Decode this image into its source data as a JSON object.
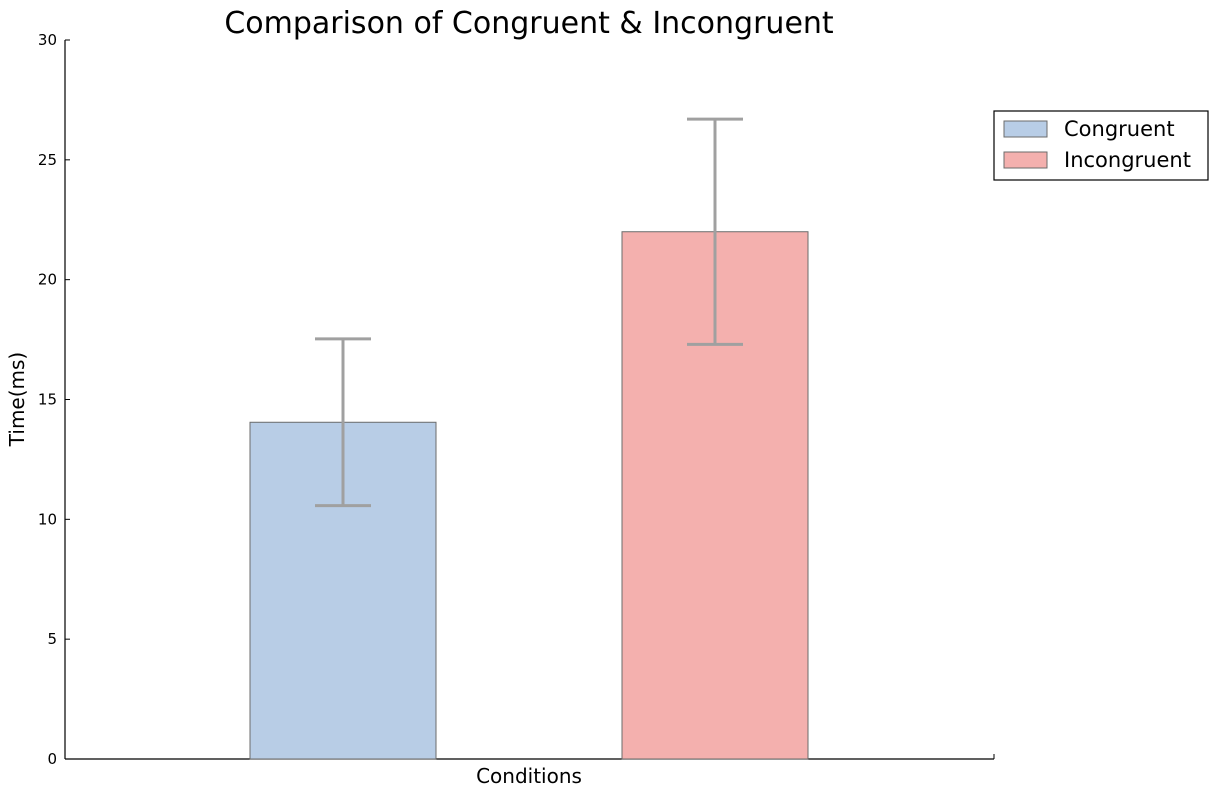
{
  "chart_data": {
    "type": "bar",
    "title": "Comparison of Congruent & Incongruent",
    "xlabel": "Conditions",
    "ylabel": "Time(ms)",
    "ylim": [
      0,
      30
    ],
    "y_ticks": [
      0,
      5,
      10,
      15,
      20,
      25,
      30
    ],
    "grid": false,
    "legend_position": "top-right",
    "categories": [
      "Congruent",
      "Incongruent"
    ],
    "values": [
      14.05,
      22.0
    ],
    "errors": [
      3.48,
      4.7
    ],
    "colors": [
      "#b8cde6",
      "#f4b0ae"
    ],
    "error_bar_color": "#a0a0a0",
    "legend": [
      {
        "label": "Congruent",
        "color": "#b8cde6"
      },
      {
        "label": "Incongruent",
        "color": "#f4b0ae"
      }
    ]
  }
}
